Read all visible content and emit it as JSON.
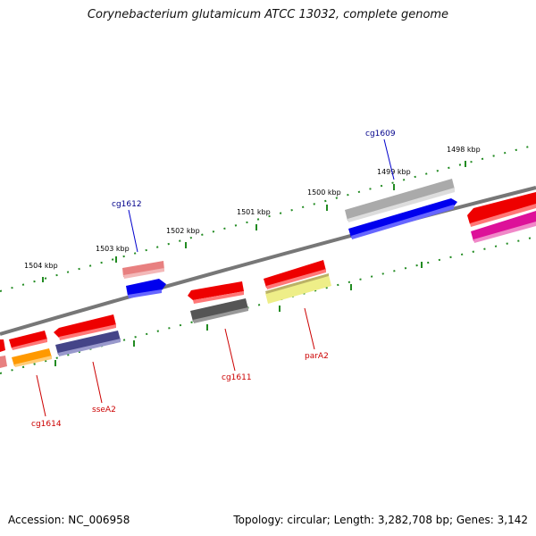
{
  "title": "Corynebacterium glutamicum ATCC 13032, complete genome",
  "accession": "Accession: NC_006958",
  "genome_info": "Topology: circular; Length: 3,282,708 bp; Genes: 3,142",
  "ticks": [
    {
      "label": "1504 kbp"
    },
    {
      "label": "1503 kbp"
    },
    {
      "label": "1502 kbp"
    },
    {
      "label": "1501 kbp"
    },
    {
      "label": "1500 kbp"
    },
    {
      "label": "1499 kbp"
    },
    {
      "label": "1498 kbp"
    }
  ],
  "labels": [
    {
      "text": "cg1609",
      "color": "#00008b"
    },
    {
      "text": "cg1612",
      "color": "#00008b"
    },
    {
      "text": "cg1611",
      "color": "#cc0000"
    },
    {
      "text": "parA2",
      "color": "#cc0000"
    },
    {
      "text": "sseA2",
      "color": "#cc0000"
    },
    {
      "text": "cg1614",
      "color": "#cc0000"
    }
  ],
  "colors": {
    "red": "#ee0000",
    "pink": "#e88080",
    "blue": "#0000ee",
    "gray": "#aaaaaa",
    "darkgray": "#555555",
    "yellow": "#eeee88",
    "orange": "#ff9900",
    "purple": "#444488",
    "magenta": "#dd1199",
    "tick": "#228b22",
    "backbone": "#777777"
  }
}
